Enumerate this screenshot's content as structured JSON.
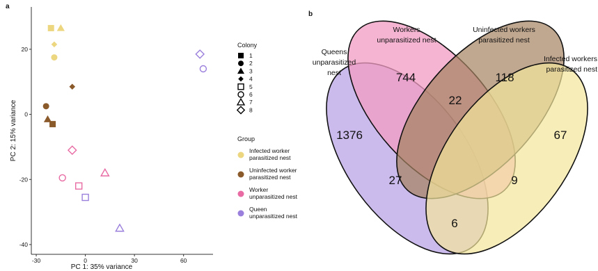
{
  "panel_a": {
    "label": "a",
    "xlabel": "PC 1: 35% variance",
    "ylabel": "PC 2: 15% variance",
    "legend": {
      "colony_title": "Colony",
      "colony_items": [
        {
          "label": "1",
          "shape": "square-filled"
        },
        {
          "label": "2",
          "shape": "circle-filled"
        },
        {
          "label": "3",
          "shape": "triangle-filled"
        },
        {
          "label": "4",
          "shape": "diamond-filled"
        },
        {
          "label": "5",
          "shape": "square-open"
        },
        {
          "label": "6",
          "shape": "circle-open"
        },
        {
          "label": "7",
          "shape": "triangle-open"
        },
        {
          "label": "8",
          "shape": "diamond-open"
        }
      ],
      "group_title": "Group",
      "group_items": [
        {
          "line1": "Infected worker",
          "line2": "parasitized nest",
          "color": "#ecd67f"
        },
        {
          "line1": "Uninfected worker",
          "line2": "parasitized nest",
          "color": "#8b5a2b"
        },
        {
          "line1": "Worker",
          "line2": "unparasitized nest",
          "color": "#e86ba3"
        },
        {
          "line1": "Queen",
          "line2": "unparasitized nest",
          "color": "#9a7fdc"
        }
      ]
    }
  },
  "panel_b": {
    "label": "b",
    "sets": [
      {
        "line1": "Queens",
        "line2": "unparasitized",
        "line3": "nest",
        "color": "#b9a3e6"
      },
      {
        "line1": "Workers",
        "line2": "unparasitized nest",
        "line3": "",
        "color": "#f29cc3"
      },
      {
        "line1": "Uninfected workers",
        "line2": "parasitized nest",
        "line3": "",
        "color": "#a5825f"
      },
      {
        "line1": "Infected workers",
        "line2": "parasitized nest",
        "line3": "",
        "color": "#f3e59b"
      }
    ],
    "counts": {
      "queens_only": "1376",
      "workers_only": "744",
      "uninfected_only": "118",
      "infected_only": "67",
      "workers_uninfected": "22",
      "queens_uninfected": "27",
      "workers_infected": "9",
      "queens_infected": "6"
    }
  },
  "chart_data": [
    {
      "type": "scatter",
      "xlabel": "PC 1: 35% variance",
      "ylabel": "PC 2: 15% variance",
      "xlim": [
        -33,
        78
      ],
      "ylim": [
        -43,
        33
      ],
      "xticks": [
        -30,
        0,
        30,
        60
      ],
      "yticks": [
        -40,
        -20,
        0,
        20
      ],
      "grid": false,
      "points": [
        {
          "x": -21,
          "y": 26.5,
          "colony": 1,
          "group": "Infected worker parasitized nest"
        },
        {
          "x": -19,
          "y": 17.5,
          "colony": 2,
          "group": "Infected worker parasitized nest"
        },
        {
          "x": -15,
          "y": 26.5,
          "colony": 3,
          "group": "Infected worker parasitized nest"
        },
        {
          "x": -19,
          "y": 21.5,
          "colony": 4,
          "group": "Infected worker parasitized nest"
        },
        {
          "x": -20,
          "y": -3,
          "colony": 1,
          "group": "Uninfected worker parasitized nest"
        },
        {
          "x": -24,
          "y": 2.5,
          "colony": 2,
          "group": "Uninfected worker parasitized nest"
        },
        {
          "x": -23,
          "y": -1.5,
          "colony": 3,
          "group": "Uninfected worker parasitized nest"
        },
        {
          "x": -8,
          "y": 8.5,
          "colony": 4,
          "group": "Uninfected worker parasitized nest"
        },
        {
          "x": -4,
          "y": -22,
          "colony": 5,
          "group": "Worker unparasitized nest"
        },
        {
          "x": -14,
          "y": -19.5,
          "colony": 6,
          "group": "Worker unparasitized nest"
        },
        {
          "x": 12,
          "y": -18,
          "colony": 7,
          "group": "Worker unparasitized nest"
        },
        {
          "x": -8,
          "y": -11,
          "colony": 8,
          "group": "Worker unparasitized nest"
        },
        {
          "x": 0,
          "y": -25.5,
          "colony": 5,
          "group": "Queen unparasitized nest"
        },
        {
          "x": 72,
          "y": 14,
          "colony": 6,
          "group": "Queen unparasitized nest"
        },
        {
          "x": 21,
          "y": -35,
          "colony": 7,
          "group": "Queen unparasitized nest"
        },
        {
          "x": 70,
          "y": 18.5,
          "colony": 8,
          "group": "Queen unparasitized nest"
        }
      ]
    },
    {
      "type": "venn",
      "sets": [
        "Queens unparasitized nest",
        "Workers unparasitized nest",
        "Uninfected workers parasitized nest",
        "Infected workers parasitized nest"
      ],
      "values": {
        "Queens only": 1376,
        "Workers only": 744,
        "Uninfected only": 118,
        "Infected only": 67,
        "Workers & Uninfected": 22,
        "Queens & Uninfected": 27,
        "Workers & Infected": 9,
        "Queens & Infected": 6
      }
    }
  ]
}
